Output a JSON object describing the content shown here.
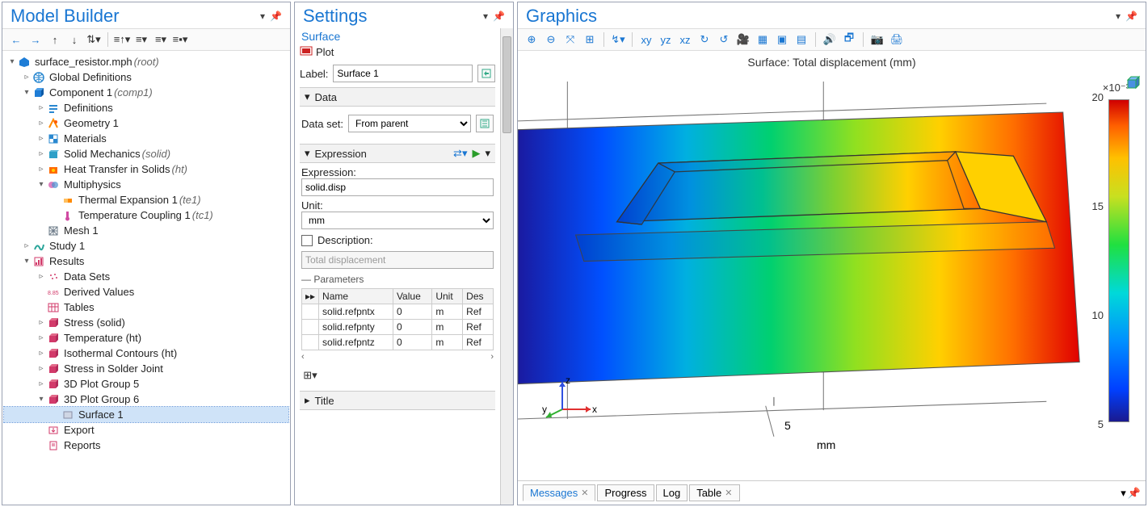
{
  "panes": {
    "model_builder_title": "Model Builder",
    "settings_title": "Settings",
    "graphics_title": "Graphics"
  },
  "mb_toolbar": [
    "←",
    "→",
    "↑",
    "↓",
    "⇅▾",
    "",
    "≡↑▾",
    "≡▾",
    "≡▾",
    "≡▪▾"
  ],
  "tree": [
    {
      "d": 0,
      "a": "▾",
      "i": "file",
      "c": "#0066cc",
      "t": "surface_resistor.mph",
      "suf": " (root)"
    },
    {
      "d": 1,
      "a": "▹",
      "i": "globe",
      "c": "#2a88d0",
      "t": "Global Definitions"
    },
    {
      "d": 1,
      "a": "▾",
      "i": "cube",
      "c": "#0d66b5",
      "t": "Component 1",
      "suf": " (comp1)"
    },
    {
      "d": 2,
      "a": "▹",
      "i": "eq",
      "c": "#2a88d0",
      "t": "Definitions"
    },
    {
      "d": 2,
      "a": "▹",
      "i": "geom",
      "c": "#ff8a00",
      "t": "Geometry 1"
    },
    {
      "d": 2,
      "a": "▹",
      "i": "mat",
      "c": "#2a88d0",
      "t": "Materials"
    },
    {
      "d": 2,
      "a": "▹",
      "i": "solid",
      "c": "#2ea0c8",
      "t": "Solid Mechanics",
      "suf": " (solid)"
    },
    {
      "d": 2,
      "a": "▹",
      "i": "heat",
      "c": "#ff6a00",
      "t": "Heat Transfer in Solids",
      "suf": " (ht)"
    },
    {
      "d": 2,
      "a": "▾",
      "i": "multi",
      "c": "#d04aa2",
      "t": "Multiphysics"
    },
    {
      "d": 3,
      "a": "",
      "i": "therm",
      "c": "#ff8a00",
      "t": "Thermal Expansion 1",
      "suf": " (te1)"
    },
    {
      "d": 3,
      "a": "",
      "i": "tcoup",
      "c": "#d04aa2",
      "t": "Temperature Coupling 1",
      "suf": " (tc1)"
    },
    {
      "d": 2,
      "a": "",
      "i": "mesh",
      "c": "#6e7c8a",
      "t": "Mesh 1"
    },
    {
      "d": 1,
      "a": "▹",
      "i": "study",
      "c": "#2aa59a",
      "t": "Study 1"
    },
    {
      "d": 1,
      "a": "▾",
      "i": "results",
      "c": "#d23a6a",
      "t": "Results"
    },
    {
      "d": 2,
      "a": "▹",
      "i": "ds",
      "c": "#d23a6a",
      "t": "Data Sets"
    },
    {
      "d": 2,
      "a": "",
      "i": "dv",
      "c": "#d23a6a",
      "t": "Derived Values"
    },
    {
      "d": 2,
      "a": "",
      "i": "tbl",
      "c": "#d23a6a",
      "t": "Tables"
    },
    {
      "d": 2,
      "a": "▹",
      "i": "pg",
      "c": "#d23a6a",
      "t": "Stress (solid)"
    },
    {
      "d": 2,
      "a": "▹",
      "i": "pg",
      "c": "#d23a6a",
      "t": "Temperature (ht)"
    },
    {
      "d": 2,
      "a": "▹",
      "i": "pg",
      "c": "#d23a6a",
      "t": "Isothermal Contours (ht)"
    },
    {
      "d": 2,
      "a": "▹",
      "i": "pg",
      "c": "#d23a6a",
      "t": "Stress in Solder Joint"
    },
    {
      "d": 2,
      "a": "▹",
      "i": "pg",
      "c": "#d23a6a",
      "t": "3D Plot Group 5"
    },
    {
      "d": 2,
      "a": "▾",
      "i": "pg",
      "c": "#d23a6a",
      "t": "3D Plot Group 6"
    },
    {
      "d": 3,
      "a": "",
      "i": "surf",
      "c": "#8a8fa6",
      "t": "Surface 1",
      "sel": true
    },
    {
      "d": 2,
      "a": "",
      "i": "exp",
      "c": "#d23a6a",
      "t": "Export"
    },
    {
      "d": 2,
      "a": "",
      "i": "rep",
      "c": "#d23a6a",
      "t": "Reports"
    }
  ],
  "settings": {
    "subtitle": "Surface",
    "plot_label": "Plot",
    "label_label": "Label:",
    "label_value": "Surface 1",
    "data_header": "Data",
    "dataset_label": "Data set:",
    "dataset_value": "From parent",
    "expr_header": "Expression",
    "expression_label": "Expression:",
    "expression_value": "solid.disp",
    "unit_label": "Unit:",
    "unit_value": "mm",
    "description_label": "Description:",
    "description_value": "Total displacement",
    "parameters_label": "Parameters",
    "param_headers": [
      "Name",
      "Value",
      "Unit",
      "Des"
    ],
    "param_rows": [
      [
        "solid.refpntx",
        "0",
        "m",
        "Ref"
      ],
      [
        "solid.refpnty",
        "0",
        "m",
        "Ref"
      ],
      [
        "solid.refpntz",
        "0",
        "m",
        "Ref"
      ]
    ],
    "title_section": "Title"
  },
  "graphics_toolbar": [
    "⊕",
    "⊖",
    "⤧",
    "⊞",
    "|",
    "↯▾",
    "",
    "xy",
    "yz",
    "xz",
    "↻",
    "↺",
    "🎥",
    "▦",
    "▣",
    "▤",
    "",
    "🔊",
    "🗗",
    "",
    "📷",
    "🖨"
  ],
  "plot": {
    "title": "Surface: Total displacement (mm)",
    "cb_exp": "×10⁻³",
    "cb_ticks": [
      "20",
      "15",
      "10",
      "5"
    ],
    "x_tick": "5",
    "x_unit": "mm",
    "triad": {
      "x": "x",
      "y": "y",
      "z": "z"
    }
  },
  "tabs": [
    {
      "label": "Messages",
      "close": true,
      "active": true
    },
    {
      "label": "Progress",
      "close": false
    },
    {
      "label": "Log",
      "close": false
    },
    {
      "label": "Table",
      "close": true
    }
  ]
}
